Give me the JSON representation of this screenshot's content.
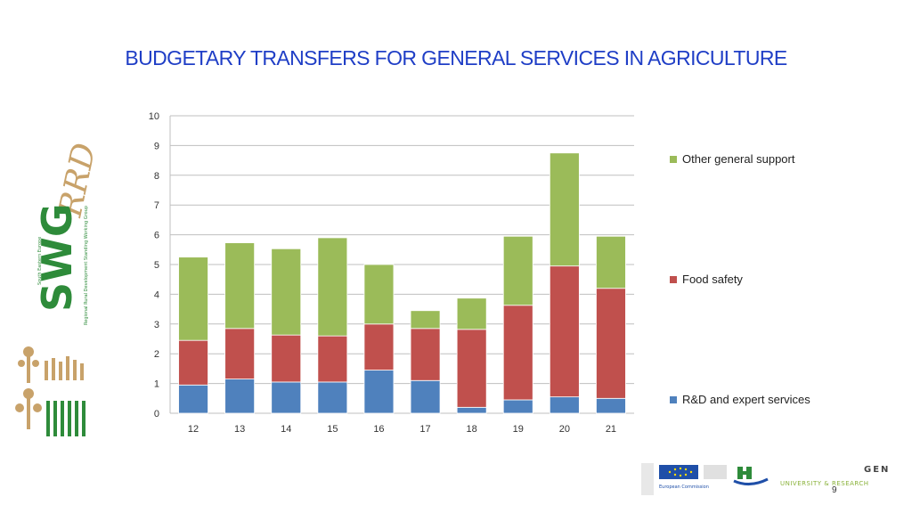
{
  "slide": {
    "title": "BUDGETARY TRANSFERS FOR GENERAL SERVICES IN AGRICULTURE",
    "page_number": "9",
    "logo_left": {
      "text_main": "SWG",
      "text_accent": "RRD",
      "text_small_1": "South Eastern Europe",
      "text_small_2": "Regional Rural Development Standing Working Group"
    },
    "footer": {
      "eu_label": "European Commission",
      "university_label": "UNIVERSITY & RESEARCH",
      "university_partial": "GEN"
    }
  },
  "colors": {
    "title": "#1f3ec6",
    "rd": "#4f81bd",
    "food": "#c0504d",
    "other": "#9bbb59",
    "grid": "#bfbfbf",
    "logo_green": "#2e8b3a",
    "logo_brown": "#c8a26a"
  },
  "chart_data": {
    "type": "bar",
    "stacked": true,
    "categories": [
      "12",
      "13",
      "14",
      "15",
      "16",
      "17",
      "18",
      "19",
      "20",
      "21"
    ],
    "series": [
      {
        "name": "R&D and expert services",
        "values": [
          0.95,
          1.15,
          1.05,
          1.05,
          1.45,
          1.1,
          0.2,
          0.45,
          0.55,
          0.5
        ]
      },
      {
        "name": "Food safety",
        "values": [
          1.5,
          1.7,
          1.58,
          1.55,
          1.55,
          1.75,
          2.62,
          3.18,
          4.4,
          3.7
        ]
      },
      {
        "name": "Other general support",
        "values": [
          2.8,
          2.88,
          2.9,
          3.3,
          2.0,
          0.6,
          1.05,
          2.32,
          3.8,
          1.75
        ]
      }
    ],
    "y_ticks": [
      "0",
      "1",
      "2",
      "3",
      "4",
      "5",
      "6",
      "7",
      "8",
      "9",
      "10"
    ],
    "ylim": [
      0,
      10
    ],
    "grid": true,
    "legend_position": "right",
    "title": "",
    "xlabel": "",
    "ylabel": ""
  }
}
